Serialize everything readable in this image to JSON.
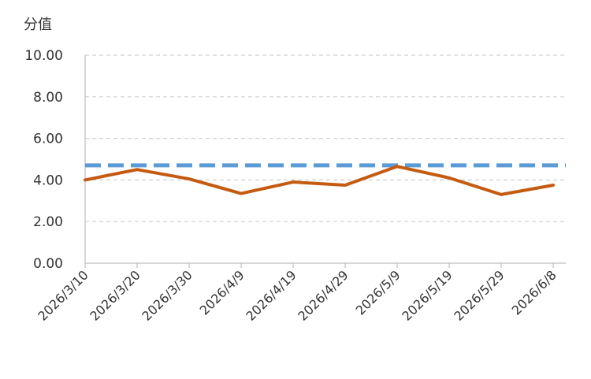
{
  "chart_data": {
    "type": "line",
    "title": "",
    "xlabel": "",
    "ylabel": "分值",
    "ylim": [
      0,
      10
    ],
    "yticks": [
      "0.00",
      "2.00",
      "4.00",
      "6.00",
      "8.00",
      "10.00"
    ],
    "ytick_values": [
      0,
      2,
      4,
      6,
      8,
      10
    ],
    "grid": true,
    "legend": "none",
    "x": [
      "2026/3/10",
      "2026/3/20",
      "2026/3/30",
      "2026/4/9",
      "2026/4/19",
      "2026/4/29",
      "2026/5/9",
      "2026/5/19",
      "2026/5/29",
      "2026/6/8"
    ],
    "series": [
      {
        "values": [
          4.0,
          4.5,
          4.05,
          3.35,
          3.9,
          3.75,
          4.65,
          4.1,
          3.3,
          3.75
        ],
        "color": "#C55A11",
        "style": "solid"
      },
      {
        "values": [
          4.7,
          4.7,
          4.7,
          4.7,
          4.7,
          4.7,
          4.7,
          4.7,
          4.7,
          4.7
        ],
        "color": "#5B9BD5",
        "style": "dashed"
      }
    ]
  }
}
